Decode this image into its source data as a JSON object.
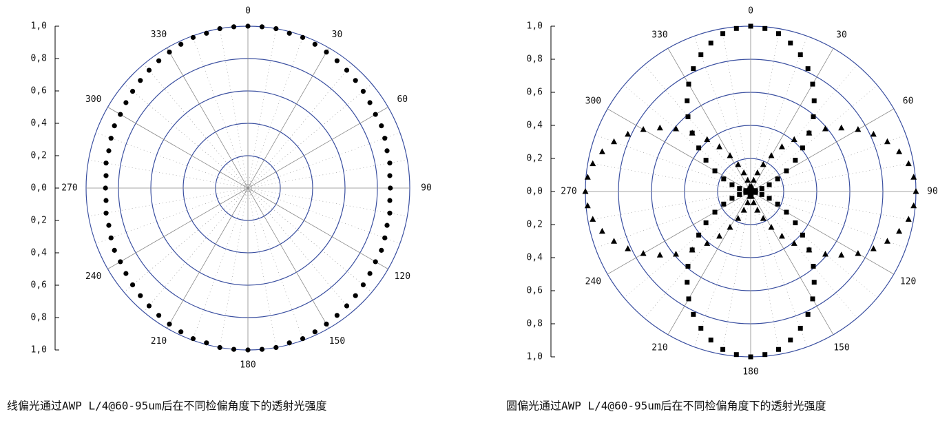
{
  "chart_data": [
    {
      "type": "polar",
      "title": "线偏光通过AWP L/4@60-95um后在不同检偏角度下的透射光强度",
      "rlim": [
        0,
        1
      ],
      "rticks": [
        {
          "value": 0,
          "label": "0,0"
        },
        {
          "value": 0.2,
          "label": "0,2"
        },
        {
          "value": 0.4,
          "label": "0,4"
        },
        {
          "value": 0.6,
          "label": "0,6"
        },
        {
          "value": 0.8,
          "label": "0,8"
        },
        {
          "value": 1,
          "label": "1,0"
        }
      ],
      "thetaticks": [
        0,
        30,
        60,
        90,
        120,
        150,
        180,
        210,
        240,
        270,
        300,
        330
      ],
      "theta": [
        0,
        5,
        10,
        15,
        20,
        25,
        30,
        35,
        40,
        45,
        50,
        55,
        60,
        65,
        70,
        75,
        80,
        85,
        90,
        95,
        100,
        105,
        110,
        115,
        120,
        125,
        130,
        135,
        140,
        145,
        150,
        155,
        160,
        165,
        170,
        175,
        180,
        185,
        190,
        195,
        200,
        205,
        210,
        215,
        220,
        225,
        230,
        235,
        240,
        245,
        250,
        255,
        260,
        265,
        270,
        275,
        280,
        285,
        290,
        295,
        300,
        305,
        310,
        315,
        320,
        325,
        330,
        335,
        340,
        345,
        350,
        355
      ],
      "grid_color": "#3a4fa0",
      "series": [
        {
          "marker": "circle",
          "color": "#000000",
          "values": [
            1.0,
            1.0,
            1.0,
            0.99,
            0.99,
            0.98,
            0.97,
            0.96,
            0.95,
            0.94,
            0.93,
            0.92,
            0.91,
            0.91,
            0.9,
            0.89,
            0.89,
            0.88,
            0.88,
            0.88,
            0.89,
            0.89,
            0.9,
            0.91,
            0.91,
            0.92,
            0.93,
            0.94,
            0.95,
            0.96,
            0.97,
            0.98,
            0.99,
            0.99,
            1.0,
            1.0,
            1.0,
            1.0,
            1.0,
            0.99,
            0.99,
            0.98,
            0.97,
            0.96,
            0.95,
            0.94,
            0.93,
            0.92,
            0.91,
            0.91,
            0.9,
            0.89,
            0.89,
            0.88,
            0.88,
            0.88,
            0.89,
            0.89,
            0.9,
            0.91,
            0.91,
            0.92,
            0.93,
            0.94,
            0.95,
            0.96,
            0.97,
            0.98,
            0.99,
            0.99,
            1.0,
            1.0
          ]
        }
      ]
    },
    {
      "type": "polar",
      "title": "圆偏光通过AWP L/4@60-95um后在不同检偏角度下的透射光强度",
      "rlim": [
        0,
        1
      ],
      "rticks": [
        {
          "value": 0,
          "label": "0,0"
        },
        {
          "value": 0.2,
          "label": "0,2"
        },
        {
          "value": 0.4,
          "label": "0,4"
        },
        {
          "value": 0.6,
          "label": "0,6"
        },
        {
          "value": 0.8,
          "label": "0,8"
        },
        {
          "value": 1,
          "label": "1,0"
        }
      ],
      "thetaticks": [
        0,
        30,
        60,
        90,
        120,
        150,
        180,
        210,
        240,
        270,
        300,
        330
      ],
      "theta": [
        0,
        5,
        10,
        15,
        20,
        25,
        30,
        35,
        40,
        45,
        50,
        55,
        60,
        65,
        70,
        75,
        80,
        85,
        90,
        95,
        100,
        105,
        110,
        115,
        120,
        125,
        130,
        135,
        140,
        145,
        150,
        155,
        160,
        165,
        170,
        175,
        180,
        185,
        190,
        195,
        200,
        205,
        210,
        215,
        220,
        225,
        230,
        235,
        240,
        245,
        250,
        255,
        260,
        265,
        270,
        275,
        280,
        285,
        290,
        295,
        300,
        305,
        310,
        315,
        320,
        325,
        330,
        335,
        340,
        345,
        350,
        355
      ],
      "grid_color": "#3a4fa0",
      "series": [
        {
          "marker": "square",
          "color": "#000000",
          "values": [
            1,
            0.99,
            0.97,
            0.93,
            0.88,
            0.82,
            0.75,
            0.67,
            0.59,
            0.5,
            0.41,
            0.33,
            0.25,
            0.18,
            0.12,
            0.07,
            0.03,
            0.01,
            0,
            0.01,
            0.03,
            0.07,
            0.12,
            0.18,
            0.25,
            0.33,
            0.41,
            0.5,
            0.59,
            0.67,
            0.75,
            0.82,
            0.88,
            0.93,
            0.97,
            0.99,
            1,
            0.99,
            0.97,
            0.93,
            0.88,
            0.82,
            0.75,
            0.67,
            0.59,
            0.5,
            0.41,
            0.33,
            0.25,
            0.18,
            0.12,
            0.07,
            0.03,
            0.01,
            0,
            0.01,
            0.03,
            0.07,
            0.12,
            0.18,
            0.25,
            0.33,
            0.41,
            0.5,
            0.59,
            0.67,
            0.75,
            0.82,
            0.88,
            0.93,
            0.97,
            0.99
          ]
        },
        {
          "marker": "triangle",
          "color": "#000000",
          "values": [
            0,
            0.01,
            0.03,
            0.07,
            0.12,
            0.18,
            0.25,
            0.33,
            0.41,
            0.5,
            0.59,
            0.67,
            0.75,
            0.82,
            0.88,
            0.93,
            0.97,
            0.99,
            1,
            0.99,
            0.97,
            0.93,
            0.88,
            0.82,
            0.75,
            0.67,
            0.59,
            0.5,
            0.41,
            0.33,
            0.25,
            0.18,
            0.12,
            0.07,
            0.03,
            0.01,
            0,
            0.01,
            0.03,
            0.07,
            0.12,
            0.18,
            0.25,
            0.33,
            0.41,
            0.5,
            0.59,
            0.67,
            0.75,
            0.82,
            0.88,
            0.93,
            0.97,
            0.99,
            1,
            0.99,
            0.97,
            0.93,
            0.88,
            0.82,
            0.75,
            0.67,
            0.59,
            0.5,
            0.41,
            0.33,
            0.25,
            0.18,
            0.12,
            0.07,
            0.03,
            0.01
          ]
        }
      ]
    }
  ]
}
